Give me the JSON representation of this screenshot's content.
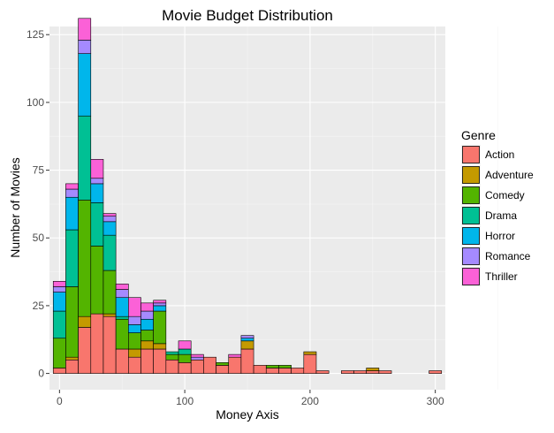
{
  "chart_data": {
    "type": "bar",
    "stacked": true,
    "title": "Movie Budget Distribution",
    "xlabel": "Money Axis",
    "ylabel": "Number of Movies",
    "xlim": [
      -8,
      308
    ],
    "ylim": [
      -6,
      128
    ],
    "x_ticks": [
      0,
      100,
      200,
      300
    ],
    "y_ticks": [
      0,
      25,
      50,
      75,
      100,
      125
    ],
    "grid": true,
    "legend_position": "right",
    "legend_title": "Genre",
    "bin_width": 10,
    "bin_centers": [
      0,
      10,
      20,
      30,
      40,
      50,
      60,
      70,
      80,
      90,
      100,
      110,
      120,
      130,
      140,
      150,
      160,
      170,
      180,
      190,
      200,
      210,
      220,
      230,
      240,
      250,
      260,
      270,
      280,
      290,
      300
    ],
    "series": [
      {
        "name": "Action",
        "color": "#F8766D",
        "values": [
          2,
          5,
          17,
          22,
          21,
          9,
          6,
          9,
          9,
          5,
          4,
          5,
          6,
          3,
          6,
          9,
          3,
          2,
          2,
          2,
          7,
          1,
          0,
          1,
          1,
          1,
          1,
          0,
          0,
          0,
          1
        ]
      },
      {
        "name": "Adventure",
        "color": "#C49A00",
        "values": [
          0,
          1,
          4,
          0,
          1,
          0,
          3,
          3,
          2,
          0,
          0,
          0,
          0,
          0,
          0,
          3,
          0,
          0,
          0,
          0,
          1,
          0,
          0,
          0,
          0,
          1,
          0,
          0,
          0,
          0,
          0
        ]
      },
      {
        "name": "Comedy",
        "color": "#53B400",
        "values": [
          11,
          26,
          43,
          25,
          16,
          11,
          6,
          4,
          12,
          2,
          3,
          0,
          0,
          1,
          0,
          0,
          0,
          1,
          1,
          0,
          0,
          0,
          0,
          0,
          0,
          0,
          0,
          0,
          0,
          0,
          0
        ]
      },
      {
        "name": "Drama",
        "color": "#00C094",
        "values": [
          10,
          21,
          31,
          16,
          13,
          1,
          0,
          0,
          0,
          1,
          2,
          0,
          0,
          0,
          0,
          0,
          0,
          0,
          0,
          0,
          0,
          0,
          0,
          0,
          0,
          0,
          0,
          0,
          0,
          0,
          0
        ]
      },
      {
        "name": "Horror",
        "color": "#00B6EB",
        "values": [
          7,
          12,
          23,
          7,
          5,
          7,
          3,
          4,
          2,
          0,
          0,
          0,
          0,
          0,
          0,
          1,
          0,
          0,
          0,
          0,
          0,
          0,
          0,
          0,
          0,
          0,
          0,
          0,
          0,
          0,
          0
        ]
      },
      {
        "name": "Romance",
        "color": "#A58AFF",
        "values": [
          2,
          3,
          5,
          2,
          2,
          3,
          3,
          3,
          1,
          0,
          0,
          1,
          0,
          0,
          0,
          1,
          0,
          0,
          0,
          0,
          0,
          0,
          0,
          0,
          0,
          0,
          0,
          0,
          0,
          0,
          0
        ]
      },
      {
        "name": "Thriller",
        "color": "#FB61D7",
        "values": [
          2,
          2,
          8,
          7,
          1,
          2,
          7,
          3,
          1,
          0,
          3,
          1,
          0,
          0,
          1,
          0,
          0,
          0,
          0,
          0,
          0,
          0,
          0,
          0,
          0,
          0,
          0,
          0,
          0,
          0,
          0
        ]
      }
    ]
  }
}
